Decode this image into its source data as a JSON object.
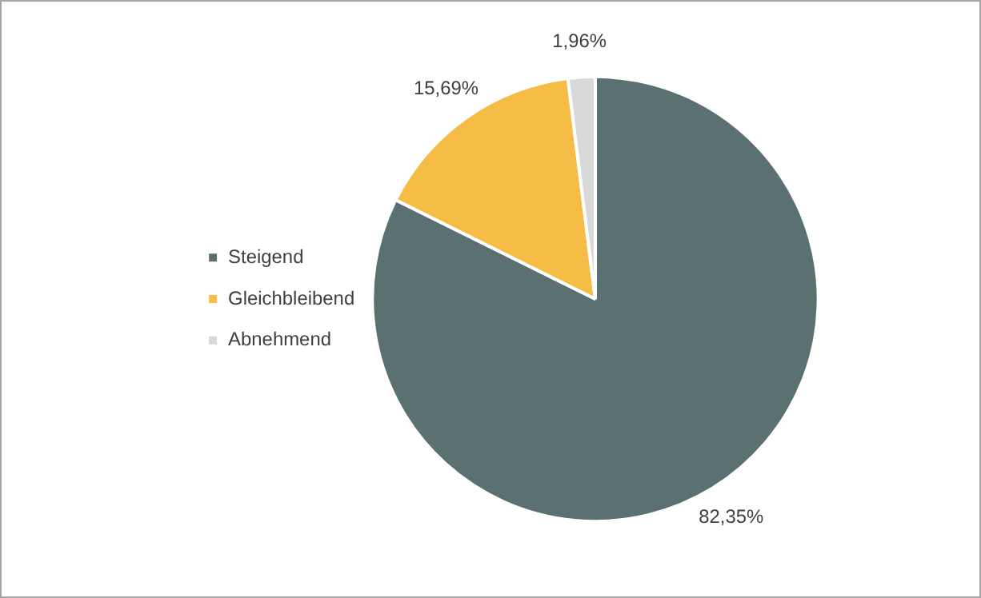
{
  "chart_data": {
    "type": "pie",
    "categories": [
      "Steigend",
      "Gleichbleibend",
      "Abnehmend"
    ],
    "values": [
      82.35,
      15.69,
      1.96
    ],
    "colors": [
      "#5b7070",
      "#f5bd45",
      "#d9d9d9"
    ],
    "value_labels": [
      "82,35%",
      "15,69%",
      "1,96%"
    ],
    "legend": "left"
  }
}
